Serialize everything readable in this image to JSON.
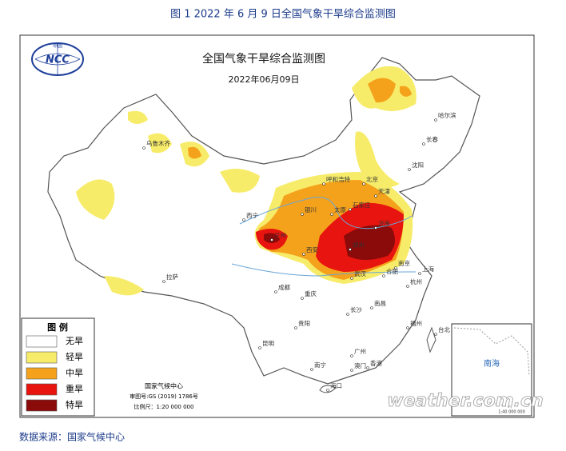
{
  "caption": "图 1 2022 年 6 月 9 日全国气象干旱综合监测图",
  "map": {
    "title": "全国气象干旱综合监测图",
    "date": "2022年06月09日",
    "logo_top": "中国",
    "logo_text": "NCC"
  },
  "legend": {
    "title": "图 例",
    "items": [
      {
        "label": "无旱",
        "color": "#ffffff"
      },
      {
        "label": "轻旱",
        "color": "#f7ec6a"
      },
      {
        "label": "中旱",
        "color": "#f4a21c"
      },
      {
        "label": "重旱",
        "color": "#e8140f"
      },
      {
        "label": "特旱",
        "color": "#8b0a0a"
      }
    ]
  },
  "credits": [
    "国家气候中心",
    "审图号:GS (2019) 1786号",
    "比例尺：1:20 000 000"
  ],
  "cities": [
    "哈尔滨",
    "长春",
    "沈阳",
    "乌鲁木齐",
    "呼和浩特",
    "北京",
    "天津",
    "石家庄",
    "太原",
    "银川",
    "西宁",
    "兰州",
    "济南",
    "郑州",
    "西安",
    "南京",
    "合肥",
    "上海",
    "武汉",
    "杭州",
    "成都",
    "重庆",
    "拉萨",
    "长沙",
    "南昌",
    "福州",
    "台北",
    "贵阳",
    "昆明",
    "广州",
    "南宁",
    "澳门",
    "香港",
    "海口"
  ],
  "inset": {
    "label": "南海",
    "scale": "1:40 000 000"
  },
  "watermark": "weather.com.cn",
  "source": "数据来源：国家气候中心"
}
